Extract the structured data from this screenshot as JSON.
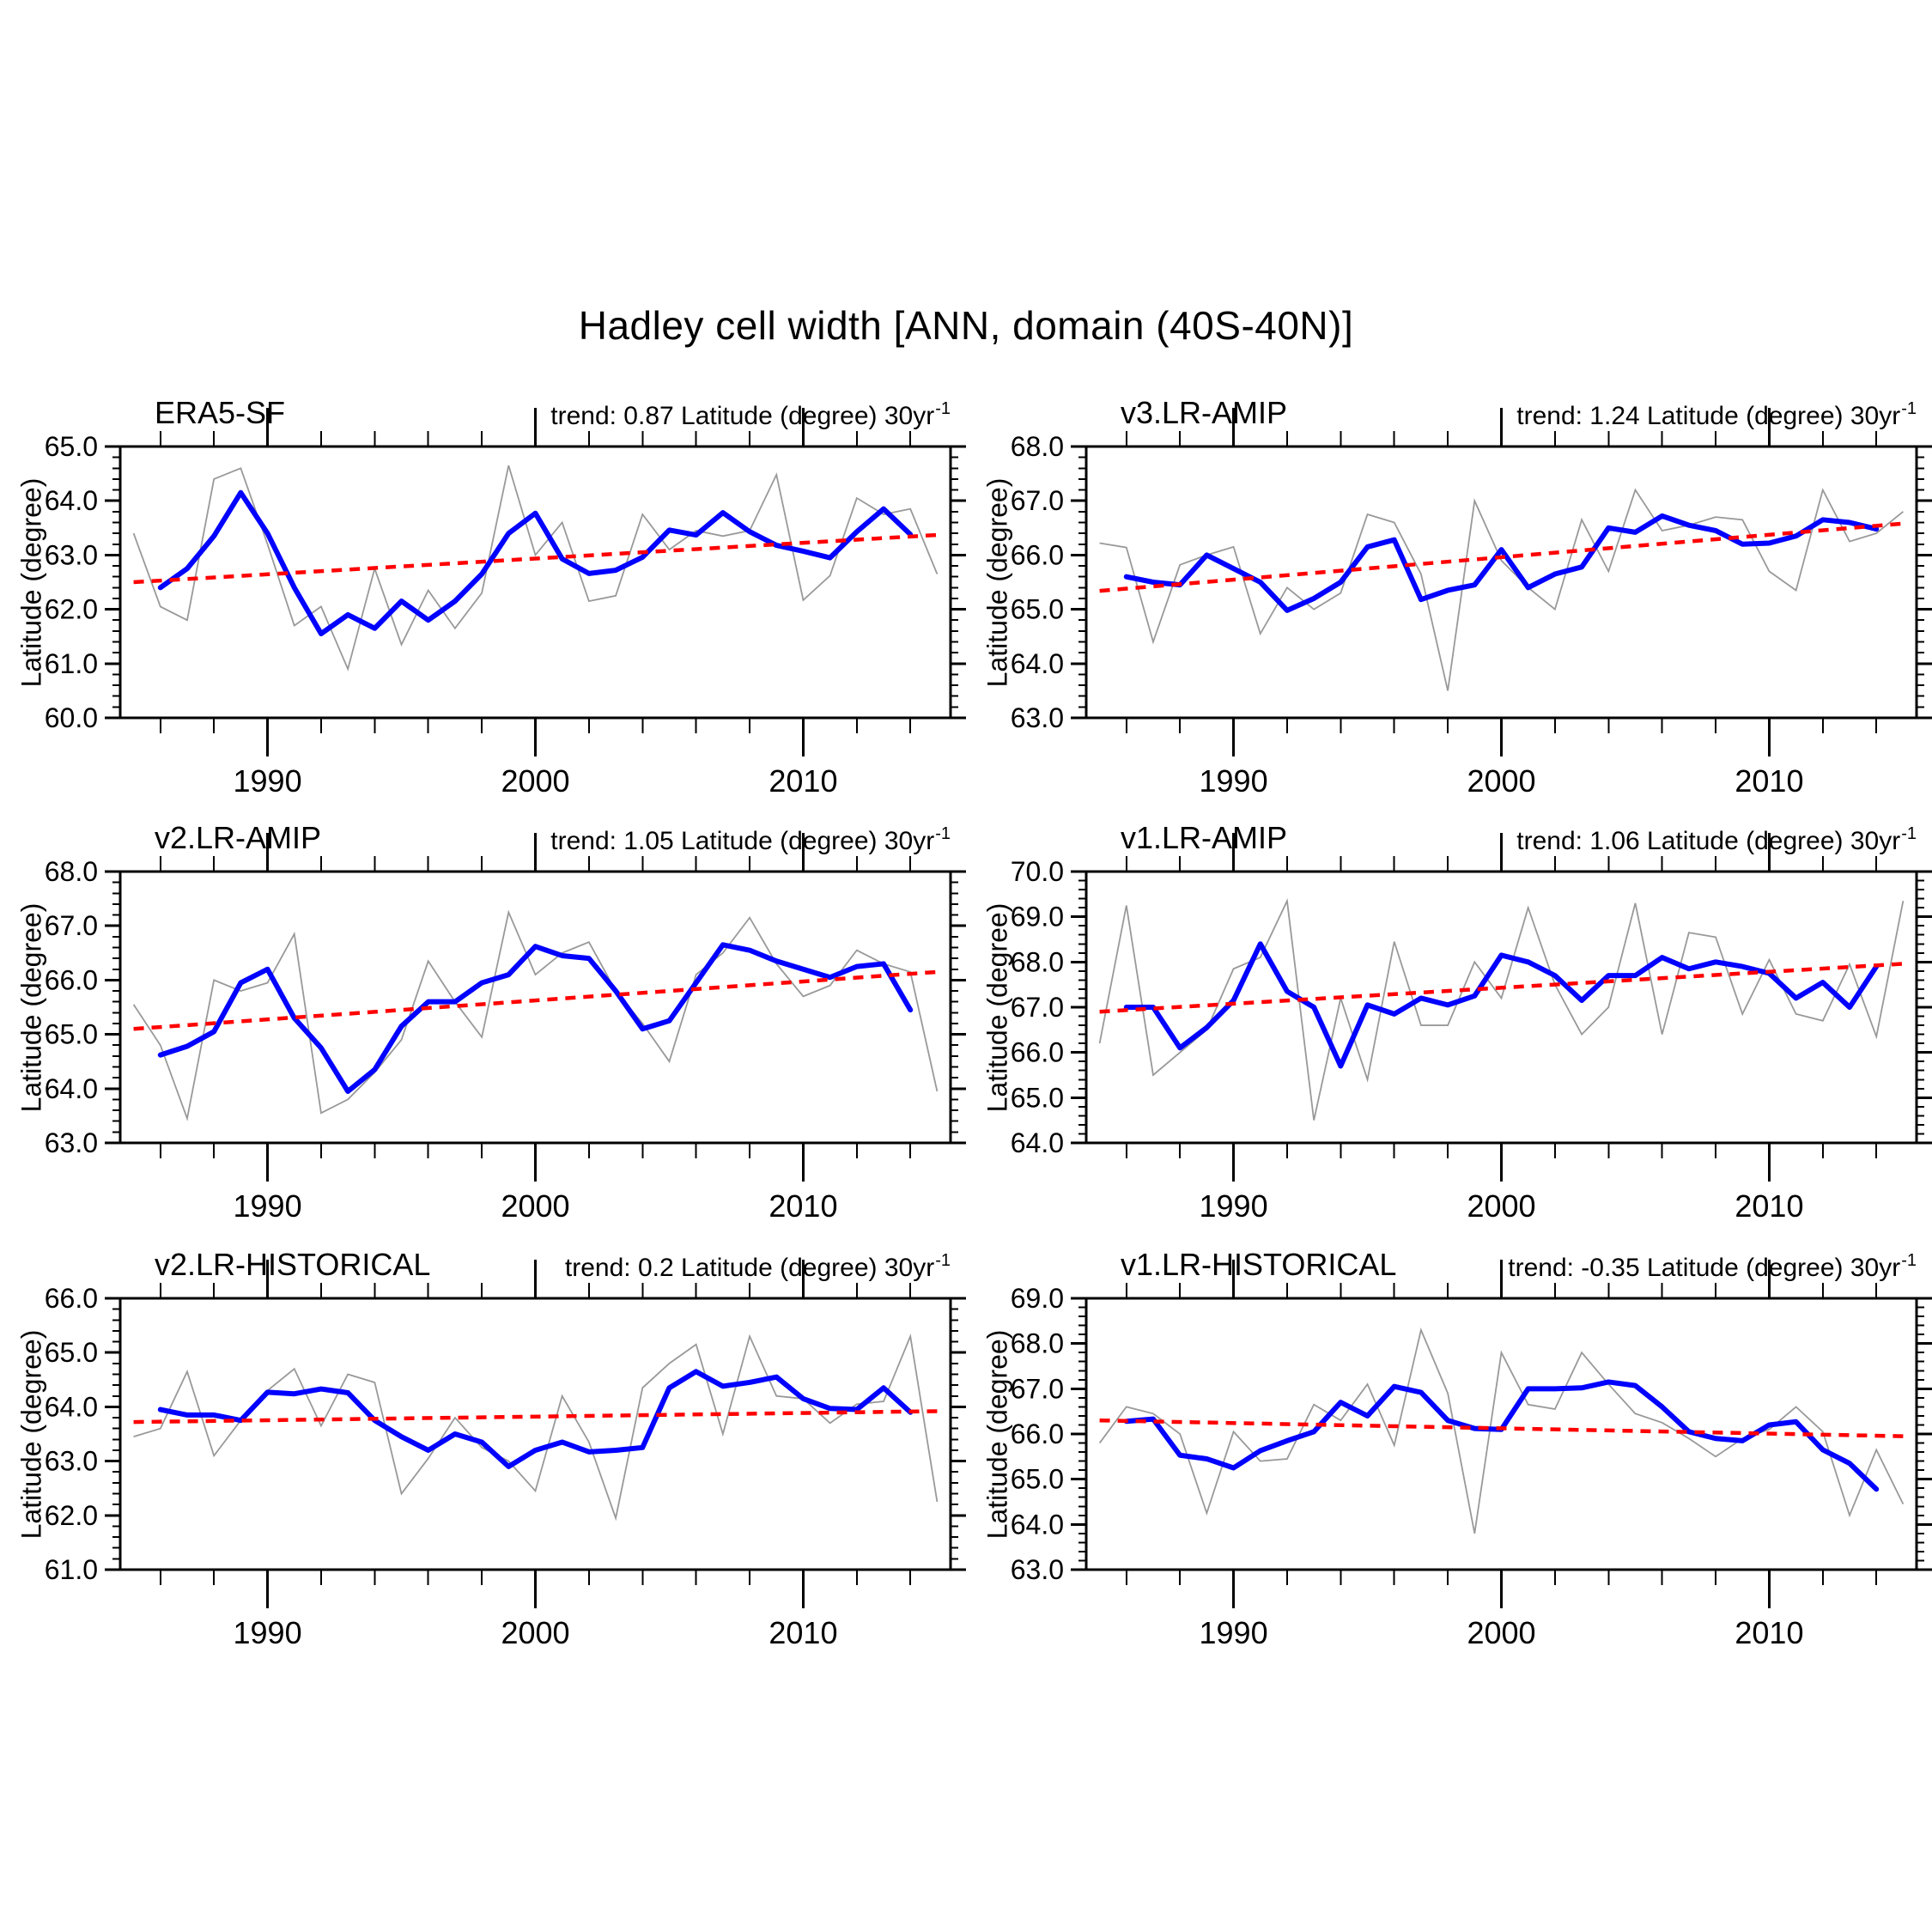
{
  "title": "Hadley cell width [ANN, domain (40S-40N)]",
  "ylabel": "Latitude (degree)",
  "axes": {
    "xlim": [
      1984.5,
      2015.5
    ],
    "x_major_ticks": [
      1990,
      2000,
      2010
    ],
    "x_minor_start": 1986,
    "x_minor_end": 2014,
    "x_minor_step": 2,
    "y_major_step": 1.0,
    "y_minor_step": 0.2,
    "y_label_decimals": 1
  },
  "colors": {
    "annual_line": "#999999",
    "smoothed_line": "#0000ff",
    "trend_line": "#ff0000",
    "axis": "#000000",
    "background": "#ffffff"
  },
  "chart_data": [
    {
      "type": "line",
      "name": "ERA5-SF",
      "trend_text": "trend: 0.87 Latitude (degree) 30yr",
      "trend_sup": "-1",
      "trend_per_30yr": 0.87,
      "ylim": [
        60.0,
        65.0
      ],
      "annual": {
        "start_year": 1985,
        "values": [
          63.4,
          62.05,
          61.8,
          64.4,
          64.6,
          63.2,
          61.7,
          62.05,
          60.9,
          62.75,
          61.35,
          62.35,
          61.65,
          62.3,
          64.65,
          63.0,
          63.6,
          62.15,
          62.25,
          63.75,
          63.1,
          63.45,
          63.35,
          63.45,
          64.48,
          62.17,
          62.62,
          64.05,
          63.75,
          63.85,
          62.65
        ]
      },
      "smoothed": {
        "start_year": 1986,
        "values": [
          62.4,
          62.75,
          63.35,
          64.15,
          63.4,
          62.4,
          61.55,
          61.9,
          61.65,
          62.15,
          61.8,
          62.15,
          62.65,
          63.4,
          63.77,
          62.93,
          62.66,
          62.72,
          62.96,
          63.46,
          63.37,
          63.78,
          63.43,
          63.18,
          63.07,
          62.95,
          63.43,
          63.85,
          63.38
        ]
      },
      "trend": {
        "start_year": 1985,
        "end_year": 2015,
        "start_value": 62.5,
        "end_value": 63.37
      }
    },
    {
      "type": "line",
      "name": "v3.LR-AMIP",
      "trend_text": "trend: 1.24 Latitude (degree) 30yr",
      "trend_sup": "-1",
      "trend_per_30yr": 1.24,
      "ylim": [
        63.0,
        68.0
      ],
      "annual": {
        "start_year": 1985,
        "values": [
          66.22,
          66.14,
          64.4,
          65.82,
          66.0,
          66.15,
          64.55,
          65.4,
          65.0,
          65.3,
          66.75,
          66.6,
          65.65,
          63.5,
          67.0,
          65.9,
          65.4,
          65.0,
          66.65,
          65.7,
          67.2,
          66.45,
          66.55,
          66.7,
          66.65,
          65.7,
          65.35,
          67.2,
          66.25,
          66.4,
          66.8
        ]
      },
      "smoothed": {
        "start_year": 1986,
        "values": [
          65.6,
          65.5,
          65.45,
          66.0,
          65.75,
          65.5,
          64.98,
          65.2,
          65.5,
          66.15,
          66.28,
          65.18,
          65.35,
          65.45,
          66.1,
          65.4,
          65.65,
          65.78,
          66.5,
          66.42,
          66.72,
          66.55,
          66.45,
          66.2,
          66.22,
          66.35,
          66.65,
          66.6,
          66.48
        ]
      },
      "trend": {
        "start_year": 1985,
        "end_year": 2015,
        "start_value": 65.34,
        "end_value": 66.58
      }
    },
    {
      "type": "line",
      "name": "v2.LR-AMIP",
      "trend_text": "trend: 1.05 Latitude (degree) 30yr",
      "trend_sup": "-1",
      "trend_per_30yr": 1.05,
      "ylim": [
        63.0,
        68.0
      ],
      "annual": {
        "start_year": 1985,
        "values": [
          65.55,
          64.8,
          63.45,
          66.0,
          65.8,
          65.95,
          66.85,
          63.55,
          63.8,
          64.3,
          64.9,
          66.35,
          65.6,
          64.95,
          67.25,
          66.1,
          66.5,
          66.7,
          65.8,
          65.2,
          64.5,
          66.1,
          66.5,
          67.15,
          66.3,
          65.7,
          65.9,
          66.55,
          66.3,
          66.15,
          63.95
        ]
      },
      "smoothed": {
        "start_year": 1986,
        "values": [
          64.62,
          64.78,
          65.05,
          65.95,
          66.2,
          65.3,
          64.75,
          63.95,
          64.35,
          65.15,
          65.6,
          65.6,
          65.95,
          66.1,
          66.62,
          66.45,
          66.4,
          65.8,
          65.1,
          65.25,
          65.95,
          66.65,
          66.55,
          66.35,
          66.2,
          66.05,
          66.25,
          66.3,
          65.45
        ]
      },
      "trend": {
        "start_year": 1985,
        "end_year": 2015,
        "start_value": 65.1,
        "end_value": 66.15
      }
    },
    {
      "type": "line",
      "name": "v1.LR-AMIP",
      "trend_text": "trend: 1.06 Latitude (degree) 30yr",
      "trend_sup": "-1",
      "trend_per_30yr": 1.06,
      "ylim": [
        64.0,
        70.0
      ],
      "annual": {
        "start_year": 1985,
        "values": [
          66.2,
          69.25,
          65.5,
          66.0,
          66.5,
          67.85,
          68.1,
          69.35,
          64.5,
          67.2,
          65.4,
          68.45,
          66.6,
          66.6,
          68.0,
          67.2,
          69.2,
          67.5,
          66.4,
          67.0,
          69.3,
          66.4,
          68.65,
          68.55,
          66.85,
          68.05,
          66.85,
          66.7,
          67.95,
          66.35,
          69.35
        ]
      },
      "smoothed": {
        "start_year": 1986,
        "values": [
          67.0,
          67.0,
          66.1,
          66.55,
          67.15,
          68.4,
          67.35,
          67.0,
          65.7,
          67.05,
          66.85,
          67.2,
          67.05,
          67.25,
          68.15,
          68.0,
          67.7,
          67.15,
          67.7,
          67.7,
          68.1,
          67.85,
          68.0,
          67.9,
          67.75,
          67.2,
          67.55,
          67.0,
          67.9
        ]
      },
      "trend": {
        "start_year": 1985,
        "end_year": 2015,
        "start_value": 66.9,
        "end_value": 67.96
      }
    },
    {
      "type": "line",
      "name": "v2.LR-HISTORICAL",
      "trend_text": "trend: 0.2 Latitude (degree) 30yr",
      "trend_sup": "-1",
      "trend_per_30yr": 0.2,
      "ylim": [
        61.0,
        66.0
      ],
      "annual": {
        "start_year": 1985,
        "values": [
          63.45,
          63.6,
          64.65,
          63.1,
          63.75,
          64.3,
          64.7,
          63.65,
          64.6,
          64.45,
          62.4,
          63.05,
          63.8,
          63.25,
          63.0,
          62.45,
          64.2,
          63.35,
          61.95,
          64.35,
          64.8,
          65.15,
          63.5,
          65.3,
          64.2,
          64.15,
          63.7,
          64.05,
          64.1,
          65.3,
          62.25
        ]
      },
      "smoothed": {
        "start_year": 1986,
        "values": [
          63.95,
          63.85,
          63.85,
          63.75,
          64.27,
          64.24,
          64.33,
          64.26,
          63.75,
          63.45,
          63.2,
          63.5,
          63.35,
          62.9,
          63.2,
          63.35,
          63.17,
          63.2,
          63.25,
          64.35,
          64.65,
          64.38,
          64.45,
          64.55,
          64.15,
          63.97,
          63.95,
          64.35,
          63.9
        ]
      },
      "trend": {
        "start_year": 1985,
        "end_year": 2015,
        "start_value": 63.72,
        "end_value": 63.92
      }
    },
    {
      "type": "line",
      "name": "v1.LR-HISTORICAL",
      "trend_text": "trend: -0.35 Latitude (degree) 30yr",
      "trend_sup": "-1",
      "trend_per_30yr": -0.35,
      "ylim": [
        63.0,
        69.0
      ],
      "annual": {
        "start_year": 1985,
        "values": [
          65.8,
          66.6,
          66.45,
          66.0,
          64.25,
          66.05,
          65.4,
          65.45,
          66.65,
          66.3,
          67.1,
          65.75,
          68.3,
          66.9,
          63.8,
          67.8,
          66.65,
          66.55,
          67.8,
          67.1,
          66.45,
          66.25,
          65.9,
          65.5,
          65.9,
          66.1,
          66.6,
          66.05,
          64.2,
          65.65,
          64.45
        ]
      },
      "smoothed": {
        "start_year": 1986,
        "values": [
          66.28,
          66.33,
          65.53,
          65.45,
          65.25,
          65.63,
          65.85,
          66.05,
          66.7,
          66.4,
          67.05,
          66.92,
          66.3,
          66.12,
          66.1,
          67.0,
          67.0,
          67.02,
          67.15,
          67.07,
          66.6,
          66.05,
          65.9,
          65.85,
          66.2,
          66.27,
          65.65,
          65.35,
          64.78
        ]
      },
      "trend": {
        "start_year": 1985,
        "end_year": 2015,
        "start_value": 66.3,
        "end_value": 65.95
      }
    }
  ]
}
